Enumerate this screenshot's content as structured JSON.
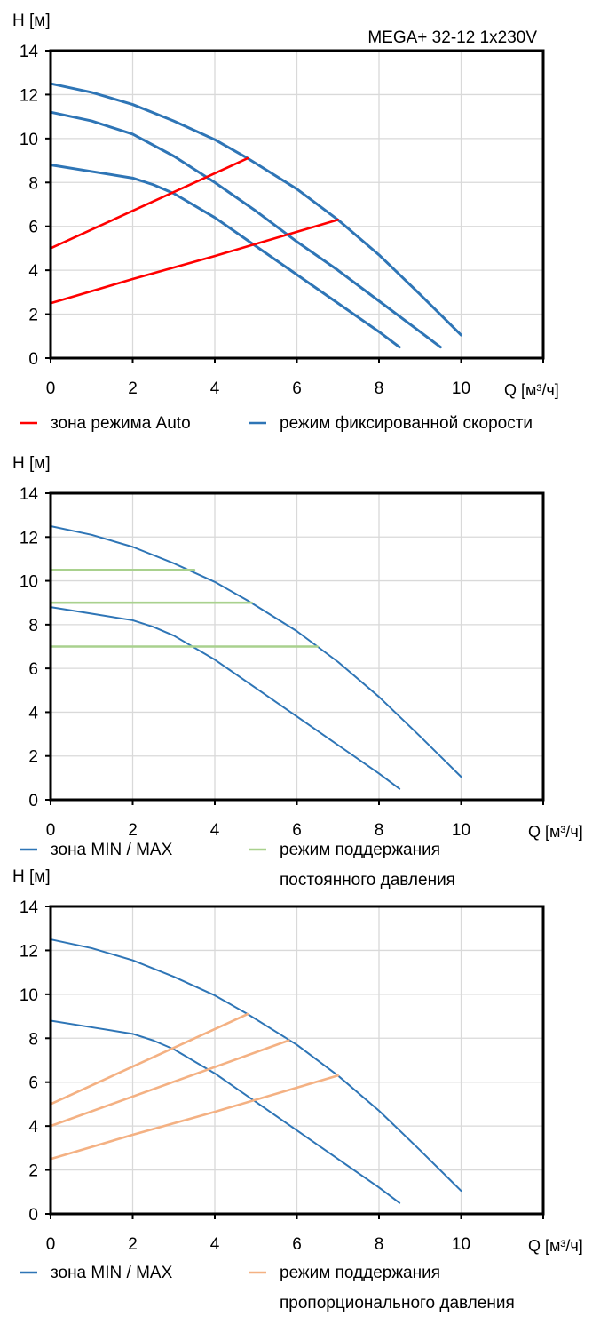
{
  "colors": {
    "blue": "#2e75b6",
    "red": "#ff0000",
    "green": "#a9d18e",
    "orange": "#f4b183",
    "grid": "#d9d9d9",
    "axis": "#000000"
  },
  "chart_data": [
    {
      "type": "line",
      "title": "MEGA+ 32-12 1x230V",
      "ylabel": "H [м]",
      "xlabel": "Q [м³/ч]",
      "xlim": [
        0,
        12
      ],
      "ylim": [
        0,
        14
      ],
      "xticks": [
        "0",
        "2",
        "4",
        "6",
        "8",
        "10"
      ],
      "yticks": [
        "0",
        "2",
        "4",
        "6",
        "8",
        "10",
        "12",
        "14"
      ],
      "grid": true,
      "legend": [
        {
          "label": "зона режима Auto",
          "color": "#ff0000"
        },
        {
          "label": "режим фиксированной скорости",
          "color": "#2e75b6"
        }
      ],
      "series": [
        {
          "group": "fixed",
          "color": "#2e75b6",
          "x": [
            0,
            1,
            2,
            3,
            4,
            4.8,
            6,
            7,
            8,
            9,
            10
          ],
          "y": [
            12.5,
            12.1,
            11.55,
            10.8,
            9.95,
            9.1,
            7.7,
            6.3,
            4.7,
            2.9,
            1.05
          ]
        },
        {
          "group": "fixed",
          "color": "#2e75b6",
          "x": [
            0,
            1,
            2,
            3,
            4,
            5,
            6,
            7,
            8,
            9,
            9.5
          ],
          "y": [
            11.2,
            10.8,
            10.2,
            9.2,
            8.0,
            6.7,
            5.3,
            4.0,
            2.6,
            1.2,
            0.5
          ]
        },
        {
          "group": "fixed",
          "color": "#2e75b6",
          "x": [
            0,
            1,
            2,
            2.5,
            3,
            4,
            5,
            6,
            7,
            8,
            8.5
          ],
          "y": [
            8.8,
            8.5,
            8.2,
            7.9,
            7.5,
            6.4,
            5.1,
            3.8,
            2.5,
            1.2,
            0.5
          ]
        },
        {
          "group": "auto",
          "color": "#ff0000",
          "x": [
            0,
            4.8
          ],
          "y": [
            5,
            9.1
          ]
        },
        {
          "group": "auto",
          "color": "#ff0000",
          "x": [
            0,
            2,
            4,
            6,
            7
          ],
          "y": [
            2.5,
            3.6,
            4.65,
            5.75,
            6.3
          ]
        }
      ]
    },
    {
      "type": "line",
      "ylabel": "H [м]",
      "xlabel": "Q [м³/ч]",
      "xlim": [
        0,
        12
      ],
      "ylim": [
        0,
        14
      ],
      "xticks": [
        "0",
        "2",
        "4",
        "6",
        "8",
        "10"
      ],
      "yticks": [
        "0",
        "2",
        "4",
        "6",
        "8",
        "10",
        "12",
        "14"
      ],
      "grid": true,
      "legend": [
        {
          "label": "зона MIN / MAX",
          "color": "#2e75b6"
        },
        {
          "label": "режим поддержания",
          "label2": "постоянного давления",
          "color": "#a9d18e"
        }
      ],
      "series": [
        {
          "group": "minmax",
          "color": "#2e75b6",
          "x": [
            0,
            1,
            2,
            3,
            4,
            4.8,
            6,
            7,
            8,
            9,
            10
          ],
          "y": [
            12.5,
            12.1,
            11.55,
            10.8,
            9.95,
            9.1,
            7.7,
            6.3,
            4.7,
            2.9,
            1.05
          ]
        },
        {
          "group": "minmax",
          "color": "#2e75b6",
          "x": [
            0,
            1,
            2,
            2.5,
            3,
            4,
            5,
            6,
            7,
            8,
            8.5
          ],
          "y": [
            8.8,
            8.5,
            8.2,
            7.9,
            7.5,
            6.4,
            5.1,
            3.8,
            2.5,
            1.2,
            0.5
          ]
        },
        {
          "group": "constant",
          "color": "#a9d18e",
          "x": [
            0,
            3.5
          ],
          "y": [
            10.5,
            10.5
          ]
        },
        {
          "group": "constant",
          "color": "#a9d18e",
          "x": [
            0,
            4.9
          ],
          "y": [
            9,
            9
          ]
        },
        {
          "group": "constant",
          "color": "#a9d18e",
          "x": [
            0,
            6.5
          ],
          "y": [
            7,
            7
          ]
        }
      ]
    },
    {
      "type": "line",
      "ylabel": "H [м]",
      "xlabel": "Q [м³/ч]",
      "xlim": [
        0,
        12
      ],
      "ylim": [
        0,
        14
      ],
      "xticks": [
        "0",
        "2",
        "4",
        "6",
        "8",
        "10"
      ],
      "yticks": [
        "0",
        "2",
        "4",
        "6",
        "8",
        "10",
        "12",
        "14"
      ],
      "grid": true,
      "legend": [
        {
          "label": "зона MIN / MAX",
          "color": "#2e75b6"
        },
        {
          "label": "режим поддержания",
          "label2": "пропорционального давления",
          "color": "#f4b183"
        }
      ],
      "series": [
        {
          "group": "minmax",
          "color": "#2e75b6",
          "x": [
            0,
            1,
            2,
            3,
            4,
            4.8,
            6,
            7,
            8,
            9,
            10
          ],
          "y": [
            12.5,
            12.1,
            11.55,
            10.8,
            9.95,
            9.1,
            7.7,
            6.3,
            4.7,
            2.9,
            1.05
          ]
        },
        {
          "group": "minmax",
          "color": "#2e75b6",
          "x": [
            0,
            1,
            2,
            2.5,
            3,
            4,
            5,
            6,
            7,
            8,
            8.5
          ],
          "y": [
            8.8,
            8.5,
            8.2,
            7.9,
            7.5,
            6.4,
            5.1,
            3.8,
            2.5,
            1.2,
            0.5
          ]
        },
        {
          "group": "proportional",
          "color": "#f4b183",
          "x": [
            0,
            4.8
          ],
          "y": [
            5,
            9.1
          ]
        },
        {
          "group": "proportional",
          "color": "#f4b183",
          "x": [
            0,
            5.8
          ],
          "y": [
            4,
            7.9
          ]
        },
        {
          "group": "proportional",
          "color": "#f4b183",
          "x": [
            0,
            2,
            4,
            6,
            7
          ],
          "y": [
            2.5,
            3.6,
            4.65,
            5.75,
            6.3
          ]
        }
      ]
    }
  ]
}
